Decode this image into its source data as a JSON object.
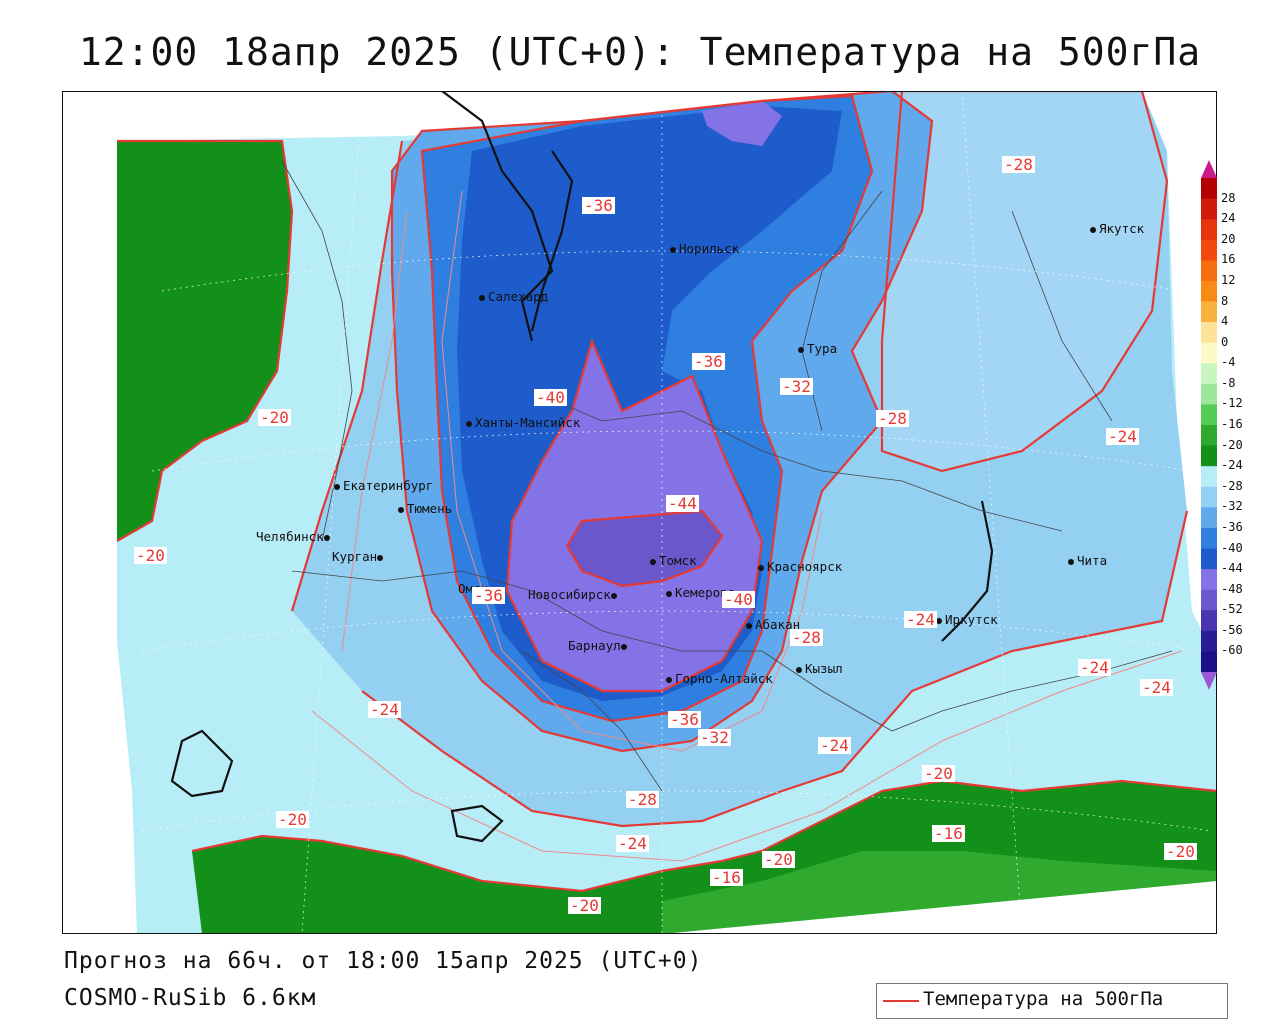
{
  "title": "12:00 18апр 2025 (UTC+0): Температура на 500гПа",
  "footer_forecast": "Прогноз на 66ч. от 18:00 15апр 2025 (UTC+0)",
  "footer_model": "COSMO-RuSib 6.6км",
  "legend": {
    "label": "Температура на 500гПа",
    "color": "#e53935"
  },
  "colorbar": {
    "labels": [
      "28",
      "24",
      "20",
      "16",
      "12",
      "8",
      "4",
      "0",
      "-4",
      "-8",
      "-12",
      "-16",
      "-20",
      "-24",
      "-28",
      "-32",
      "-36",
      "-40",
      "-44",
      "-48",
      "-52",
      "-56",
      "-60"
    ],
    "colors": [
      "#b30000",
      "#d11a0a",
      "#e8340c",
      "#f24a0d",
      "#f76c11",
      "#f98a14",
      "#fbb23c",
      "#fde39a",
      "#fff8c8",
      "#c8f5c0",
      "#9be89a",
      "#55cc55",
      "#2faa2f",
      "#12901a",
      "#b7edf7",
      "#93d0f2",
      "#5fa9ec",
      "#2f7fe0",
      "#1e5ccc",
      "#8473e6",
      "#6b57cc",
      "#4a34b0",
      "#2a1b96",
      "#1d108a"
    ]
  },
  "contour_colors": {
    "line": "#e53935",
    "thin": "#f08a8a"
  },
  "cities": [
    {
      "name": "Салехард"
    },
    {
      "name": "Норильск"
    },
    {
      "name": "Якутск"
    },
    {
      "name": "Тура"
    },
    {
      "name": "Ханты-Мансийск"
    },
    {
      "name": "Екатеринбург"
    },
    {
      "name": "Тюмень"
    },
    {
      "name": "Челябинск"
    },
    {
      "name": "Курган"
    },
    {
      "name": "Омск"
    },
    {
      "name": "Томск"
    },
    {
      "name": "Красноярск"
    },
    {
      "name": "Новосибирск"
    },
    {
      "name": "Кемерово"
    },
    {
      "name": "Абакан"
    },
    {
      "name": "Барнаул"
    },
    {
      "name": "Кызыл"
    },
    {
      "name": "Горно-Алтайск"
    },
    {
      "name": "Иркутск"
    },
    {
      "name": "Чита"
    }
  ],
  "contour_labels": [
    "-36",
    "-28",
    "-36",
    "-32",
    "-40",
    "-28",
    "-20",
    "-24",
    "-44",
    "-20",
    "-36",
    "-40",
    "-28",
    "-24",
    "-24",
    "-24",
    "-24",
    "-36",
    "-32",
    "-24",
    "-20",
    "-28",
    "-16",
    "-20",
    "-24",
    "-16",
    "-20",
    "-20",
    "-20"
  ]
}
